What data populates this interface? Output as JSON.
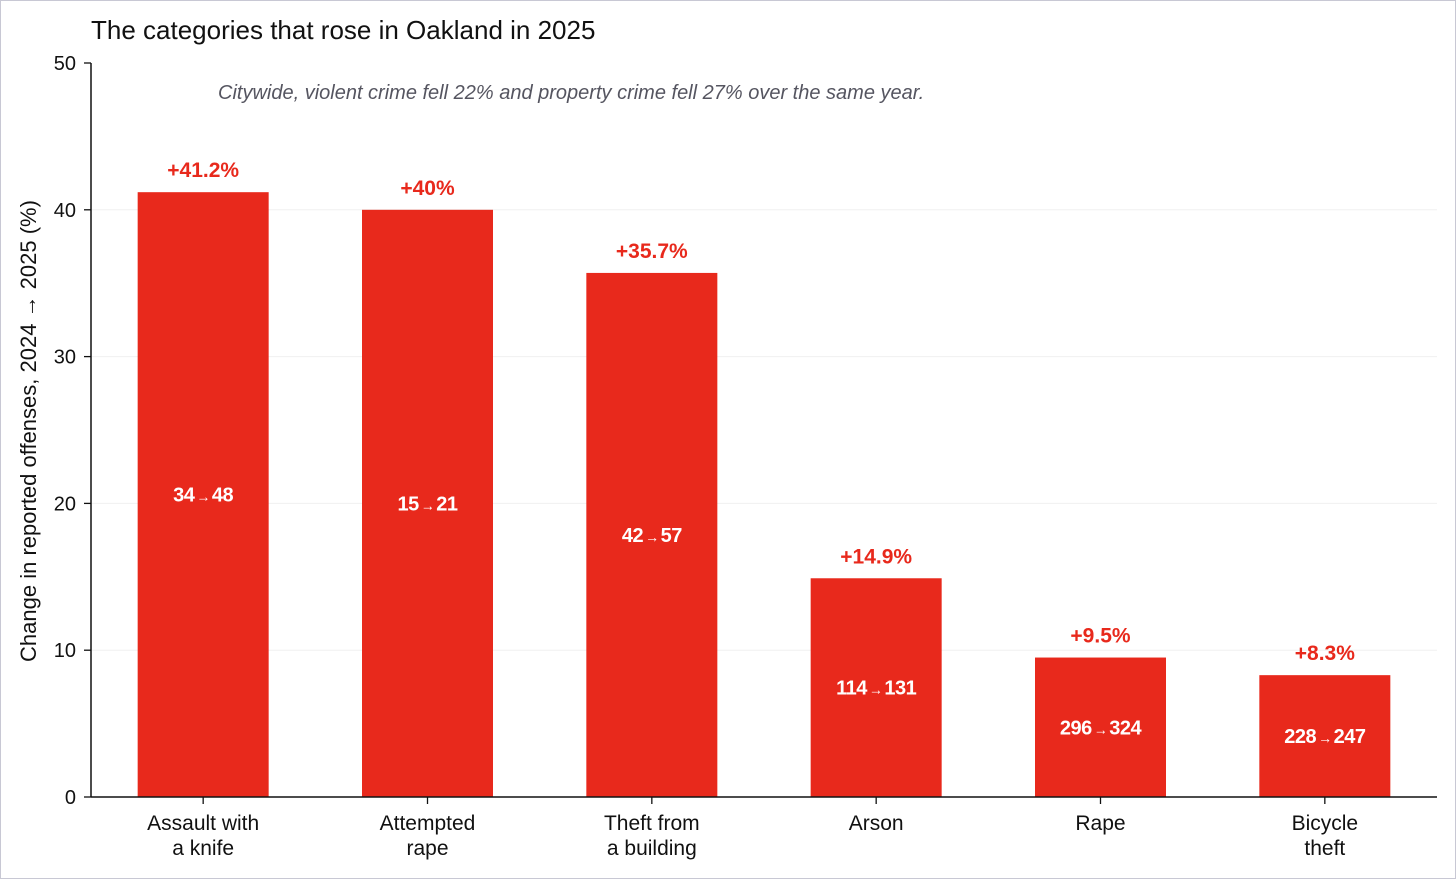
{
  "chart_data": {
    "type": "bar",
    "title": "The categories that rose in Oakland in 2025",
    "subtitle": "Citywide, violent crime fell 22% and property crime fell 27% over the same year.",
    "ylabel": "Change in reported offenses, 2024 → 2025 (%)",
    "xlabel": "",
    "ylim": [
      0,
      50
    ],
    "yticks": [
      0,
      10,
      20,
      30,
      40,
      50
    ],
    "grid": true,
    "bar_color": "#e8291c",
    "categories": [
      [
        "Assault with",
        "a knife"
      ],
      [
        "Attempted",
        "rape"
      ],
      [
        "Theft from",
        "a building"
      ],
      [
        "Arson"
      ],
      [
        "Rape"
      ],
      [
        "Bicycle",
        "theft"
      ]
    ],
    "values": [
      41.2,
      40,
      35.7,
      14.9,
      9.5,
      8.3
    ],
    "value_labels": [
      "+41.2%",
      "+40%",
      "+35.7%",
      "+14.9%",
      "+9.5%",
      "+8.3%"
    ],
    "counts": [
      {
        "from": "34",
        "to": "48"
      },
      {
        "from": "15",
        "to": "21"
      },
      {
        "from": "42",
        "to": "57"
      },
      {
        "from": "114",
        "to": "131"
      },
      {
        "from": "296",
        "to": "324"
      },
      {
        "from": "228",
        "to": "247"
      }
    ],
    "arrow": "→"
  }
}
